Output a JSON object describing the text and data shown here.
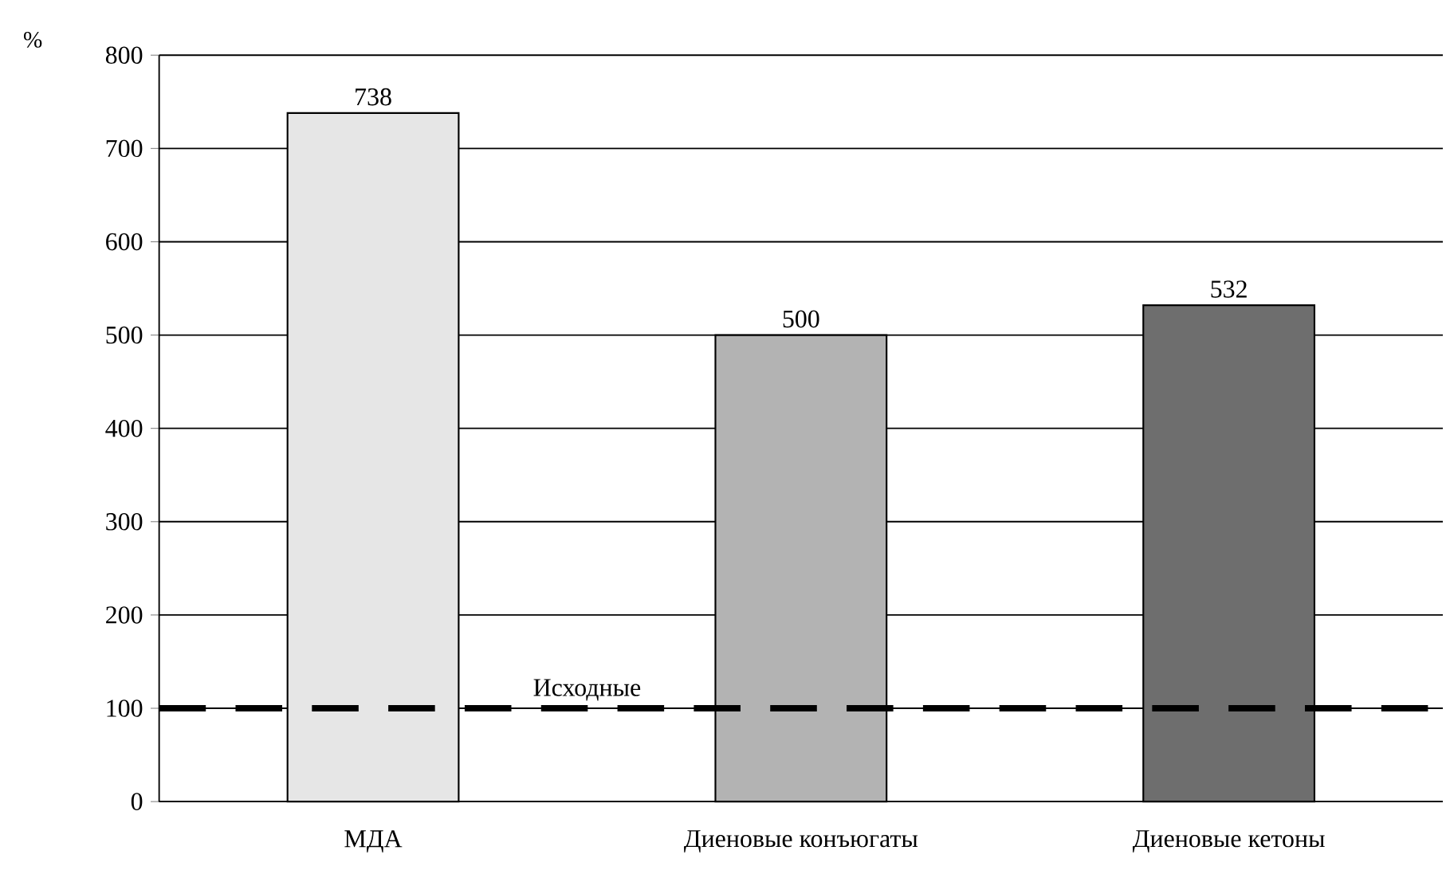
{
  "chart_data": {
    "type": "bar",
    "ylabel": "%",
    "categories": [
      "МДА",
      "Диеновые конъюгаты",
      "Диеновые кетоны"
    ],
    "values": [
      738,
      500,
      532
    ],
    "colors": [
      "#e6e6e6",
      "#b3b3b3",
      "#6e6e6e"
    ],
    "ylim": [
      0,
      800
    ],
    "yticks": [
      0,
      100,
      200,
      300,
      400,
      500,
      600,
      700,
      800
    ],
    "grid": "y",
    "data_labels": true,
    "ref_lines": [
      {
        "axis": "y",
        "value": 100,
        "label": "Исходные",
        "color": "#000000",
        "line_style": "dashed"
      }
    ]
  }
}
